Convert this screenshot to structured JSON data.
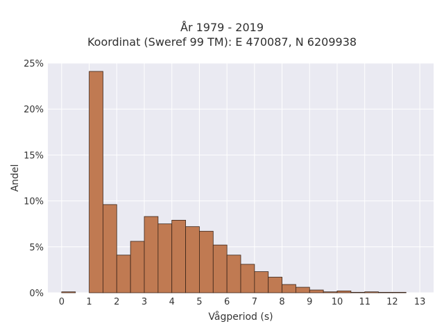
{
  "chart_data": {
    "type": "bar",
    "title_line1": "År 1979 - 2019",
    "title_line2": "Koordinat (Sweref 99 TM): E 470087, N 6209938",
    "xlabel": "Vågperiod (s)",
    "ylabel": "Andel",
    "xlim": [
      -0.5,
      13.5
    ],
    "ylim": [
      0,
      25
    ],
    "x_ticks": [
      0,
      1,
      2,
      3,
      4,
      5,
      6,
      7,
      8,
      9,
      10,
      11,
      12,
      13
    ],
    "y_ticks": [
      0,
      5,
      10,
      15,
      20,
      25
    ],
    "y_tick_labels": [
      "0%",
      "5%",
      "10%",
      "15%",
      "20%",
      "25%"
    ],
    "grid": true,
    "bin_width": 0.5,
    "bins": [
      {
        "start": 0.0,
        "value": 0.1
      },
      {
        "start": 1.0,
        "value": 24.1
      },
      {
        "start": 1.5,
        "value": 9.6
      },
      {
        "start": 2.0,
        "value": 4.1
      },
      {
        "start": 2.5,
        "value": 5.6
      },
      {
        "start": 3.0,
        "value": 8.3
      },
      {
        "start": 3.5,
        "value": 7.5
      },
      {
        "start": 4.0,
        "value": 7.9
      },
      {
        "start": 4.5,
        "value": 7.2
      },
      {
        "start": 5.0,
        "value": 6.7
      },
      {
        "start": 5.5,
        "value": 5.2
      },
      {
        "start": 6.0,
        "value": 4.1
      },
      {
        "start": 6.5,
        "value": 3.1
      },
      {
        "start": 7.0,
        "value": 2.3
      },
      {
        "start": 7.5,
        "value": 1.7
      },
      {
        "start": 8.0,
        "value": 0.9
      },
      {
        "start": 8.5,
        "value": 0.6
      },
      {
        "start": 9.0,
        "value": 0.3
      },
      {
        "start": 9.5,
        "value": 0.1
      },
      {
        "start": 10.0,
        "value": 0.2
      },
      {
        "start": 10.5,
        "value": 0.05
      },
      {
        "start": 11.0,
        "value": 0.1
      },
      {
        "start": 11.5,
        "value": 0.05
      },
      {
        "start": 12.0,
        "value": 0.05
      }
    ],
    "colors": {
      "bar_fill": "#c07a52",
      "bar_stroke": "#3a2418",
      "plot_background": "#eaeaf2",
      "grid": "#ffffff"
    }
  }
}
